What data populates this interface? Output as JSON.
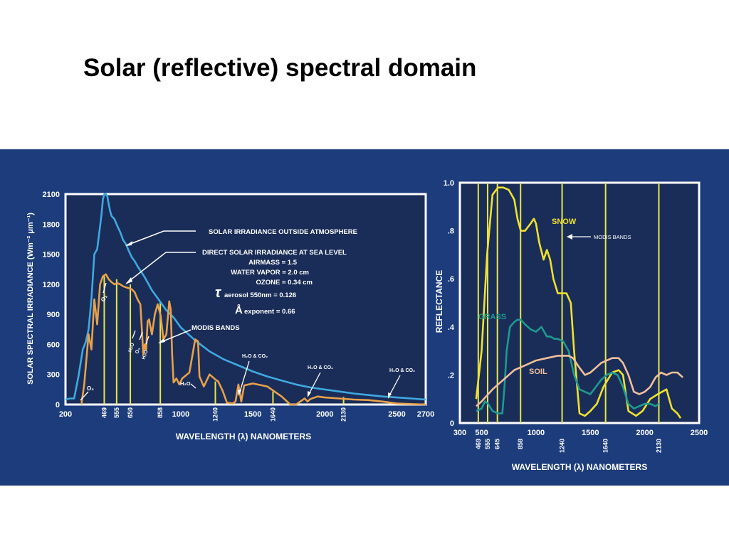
{
  "slide": {
    "title": "Solar (reflective) spectral domain"
  },
  "colors": {
    "band_bg": "#1c3c7c",
    "plot_bg": "#1a2d58",
    "frame": "#ffffff",
    "outside_curve": "#3fa9e0",
    "sea_curve": "#e8a14a",
    "modis": "#e8e64a",
    "snow": "#f0e22e",
    "grass": "#1e9a8e",
    "soil": "#f2c09c"
  },
  "chart_data": [
    {
      "type": "line",
      "ylabel": "SOLAR SPECTRAL IRRADIANCE (Wm⁻² μm⁻¹)",
      "xlabel": "WAVELENGTH (λ) NANOMETERS",
      "xlim": [
        200,
        2700
      ],
      "ylim": [
        0,
        2100
      ],
      "x_ticks": [
        "200",
        "1000",
        "1500",
        "2000",
        "2500",
        "2700"
      ],
      "y_ticks": [
        "0",
        "300",
        "600",
        "900",
        "1200",
        "1500",
        "1800",
        "2100"
      ],
      "modis_bands": [
        469,
        555,
        650,
        858,
        1240,
        1640,
        2130
      ],
      "modis_band_labels": [
        "469",
        "555",
        "650",
        "858",
        "1240",
        "1640",
        "2130"
      ],
      "modis_heights": [
        1280,
        1250,
        1200,
        1030,
        230,
        130,
        75
      ],
      "series": [
        {
          "name": "SOLAR IRRADIANCE OUTSIDE ATMOSPHERE",
          "x": [
            200,
            230,
            260,
            290,
            320,
            340,
            360,
            380,
            400,
            420,
            440,
            450,
            460,
            470,
            480,
            490,
            500,
            510,
            520,
            540,
            560,
            580,
            600,
            620,
            640,
            660,
            680,
            700,
            750,
            800,
            850,
            900,
            950,
            1000,
            1100,
            1200,
            1300,
            1400,
            1500,
            1600,
            1700,
            1800,
            1900,
            2000,
            2100,
            2200,
            2300,
            2400,
            2500,
            2600,
            2700
          ],
          "y": [
            50,
            60,
            60,
            280,
            550,
            620,
            750,
            1050,
            1500,
            1550,
            1780,
            1900,
            2050,
            2100,
            2100,
            2080,
            2000,
            1930,
            1880,
            1850,
            1780,
            1720,
            1640,
            1600,
            1530,
            1470,
            1430,
            1380,
            1270,
            1140,
            1040,
            940,
            870,
            770,
            640,
            530,
            450,
            390,
            330,
            280,
            240,
            200,
            170,
            150,
            130,
            110,
            95,
            80,
            70,
            60,
            50
          ]
        },
        {
          "name": "DIRECT SOLAR IRRADIANCE AT SEA LEVEL",
          "x": [
            310,
            330,
            360,
            380,
            400,
            420,
            440,
            460,
            480,
            500,
            520,
            540,
            560,
            580,
            600,
            620,
            640,
            660,
            680,
            700,
            720,
            740,
            750,
            760,
            770,
            780,
            800,
            820,
            840,
            860,
            880,
            900,
            920,
            930,
            940,
            950,
            970,
            990,
            1010,
            1060,
            1100,
            1120,
            1130,
            1160,
            1200,
            1240,
            1260,
            1290,
            1320,
            1360,
            1380,
            1400,
            1420,
            1440,
            1500,
            1600,
            1700,
            1760,
            1800,
            1860,
            1880,
            1900,
            1950,
            2000,
            2100,
            2200,
            2300,
            2400,
            2450,
            2500,
            2600,
            2700
          ],
          "y": [
            0,
            200,
            700,
            550,
            1050,
            800,
            1200,
            1280,
            1300,
            1250,
            1220,
            1200,
            1210,
            1200,
            1180,
            1170,
            1160,
            1150,
            1120,
            1050,
            1000,
            500,
            600,
            550,
            830,
            850,
            700,
            900,
            1000,
            890,
            650,
            700,
            1030,
            950,
            500,
            220,
            260,
            200,
            260,
            320,
            650,
            630,
            280,
            180,
            300,
            250,
            230,
            140,
            20,
            10,
            30,
            200,
            30,
            190,
            210,
            180,
            80,
            0,
            0,
            60,
            30,
            55,
            80,
            70,
            60,
            50,
            45,
            30,
            20,
            10,
            5,
            0
          ]
        }
      ],
      "annotations": {
        "outside": "SOLAR IRRADIANCE OUTSIDE ATMOSPHERE",
        "sea_level": "DIRECT SOLAR IRRADIANCE AT SEA LEVEL",
        "airmass": "AIRMASS = 1.5",
        "water_vapor": "WATER VAPOR = 2.0 cm",
        "ozone": "OZONE = 0.34 cm",
        "tau_symbol": "τ",
        "aerosol": "aerosol 550nm = 0.126",
        "angstrom_symbol": "Å",
        "exponent": "exponent = 0.66",
        "modis": "MODIS BANDS",
        "h2o_co2": "H₂O & CO₂",
        "o3": "O₃",
        "h2o": "H₂O"
      }
    },
    {
      "type": "line",
      "ylabel": "REFLECTANCE",
      "xlabel": "WAVELENGTH (λ) NANOMETERS",
      "xlim": [
        300,
        2500
      ],
      "ylim": [
        0,
        1.0
      ],
      "x_ticks": [
        "300",
        "500",
        "1000",
        "1500",
        "2000",
        "2500"
      ],
      "y_ticks": [
        "0",
        ".2",
        ".4",
        ".6",
        ".8",
        "1.0"
      ],
      "modis_bands": [
        469,
        555,
        645,
        858,
        1240,
        1640,
        2130
      ],
      "modis_band_labels": [
        "469",
        "555",
        "645",
        "858",
        "1240",
        "1640",
        "2130"
      ],
      "modis_label": "MODIS BANDS",
      "series": [
        {
          "name": "SNOW",
          "x": [
            450,
            500,
            550,
            600,
            650,
            700,
            750,
            800,
            830,
            860,
            900,
            950,
            980,
            1000,
            1030,
            1070,
            1100,
            1130,
            1160,
            1200,
            1240,
            1280,
            1320,
            1350,
            1400,
            1450,
            1500,
            1560,
            1620,
            1700,
            1760,
            1800,
            1850,
            1920,
            1980,
            2050,
            2120,
            2200,
            2250,
            2300,
            2330
          ],
          "y": [
            0.1,
            0.3,
            0.7,
            0.95,
            0.98,
            0.98,
            0.97,
            0.93,
            0.85,
            0.8,
            0.8,
            0.83,
            0.85,
            0.83,
            0.75,
            0.68,
            0.72,
            0.68,
            0.6,
            0.54,
            0.54,
            0.54,
            0.5,
            0.3,
            0.04,
            0.03,
            0.05,
            0.08,
            0.15,
            0.21,
            0.22,
            0.2,
            0.05,
            0.03,
            0.05,
            0.1,
            0.12,
            0.14,
            0.06,
            0.04,
            0.02
          ]
        },
        {
          "name": "GRASS",
          "x": [
            450,
            500,
            530,
            560,
            600,
            650,
            690,
            710,
            730,
            760,
            800,
            830,
            860,
            900,
            950,
            1000,
            1050,
            1100,
            1130,
            1170,
            1200,
            1250,
            1300,
            1350,
            1400,
            1450,
            1500,
            1550,
            1600,
            1650,
            1700,
            1750,
            1800,
            1850,
            1900,
            1950,
            2000,
            2050,
            2100,
            2130
          ],
          "y": [
            0.05,
            0.06,
            0.09,
            0.08,
            0.05,
            0.04,
            0.04,
            0.15,
            0.3,
            0.4,
            0.42,
            0.43,
            0.43,
            0.41,
            0.39,
            0.38,
            0.4,
            0.36,
            0.36,
            0.35,
            0.35,
            0.34,
            0.3,
            0.2,
            0.14,
            0.13,
            0.12,
            0.15,
            0.18,
            0.2,
            0.21,
            0.2,
            0.15,
            0.08,
            0.06,
            0.07,
            0.08,
            0.08,
            0.07,
            0.08
          ]
        },
        {
          "name": "SOIL",
          "x": [
            450,
            500,
            600,
            700,
            800,
            900,
            1000,
            1100,
            1200,
            1250,
            1300,
            1340,
            1400,
            1450,
            1500,
            1550,
            1600,
            1650,
            1700,
            1760,
            1800,
            1850,
            1900,
            1950,
            2000,
            2050,
            2100,
            2150,
            2200,
            2250,
            2300,
            2350
          ],
          "y": [
            0.07,
            0.09,
            0.14,
            0.18,
            0.22,
            0.24,
            0.26,
            0.27,
            0.28,
            0.28,
            0.28,
            0.27,
            0.23,
            0.2,
            0.21,
            0.23,
            0.25,
            0.26,
            0.27,
            0.27,
            0.25,
            0.2,
            0.13,
            0.12,
            0.13,
            0.15,
            0.19,
            0.21,
            0.2,
            0.21,
            0.21,
            0.19
          ]
        }
      ],
      "labels": {
        "snow": "SNOW",
        "grass": "GRASS",
        "soil": "SOIL"
      }
    }
  ]
}
